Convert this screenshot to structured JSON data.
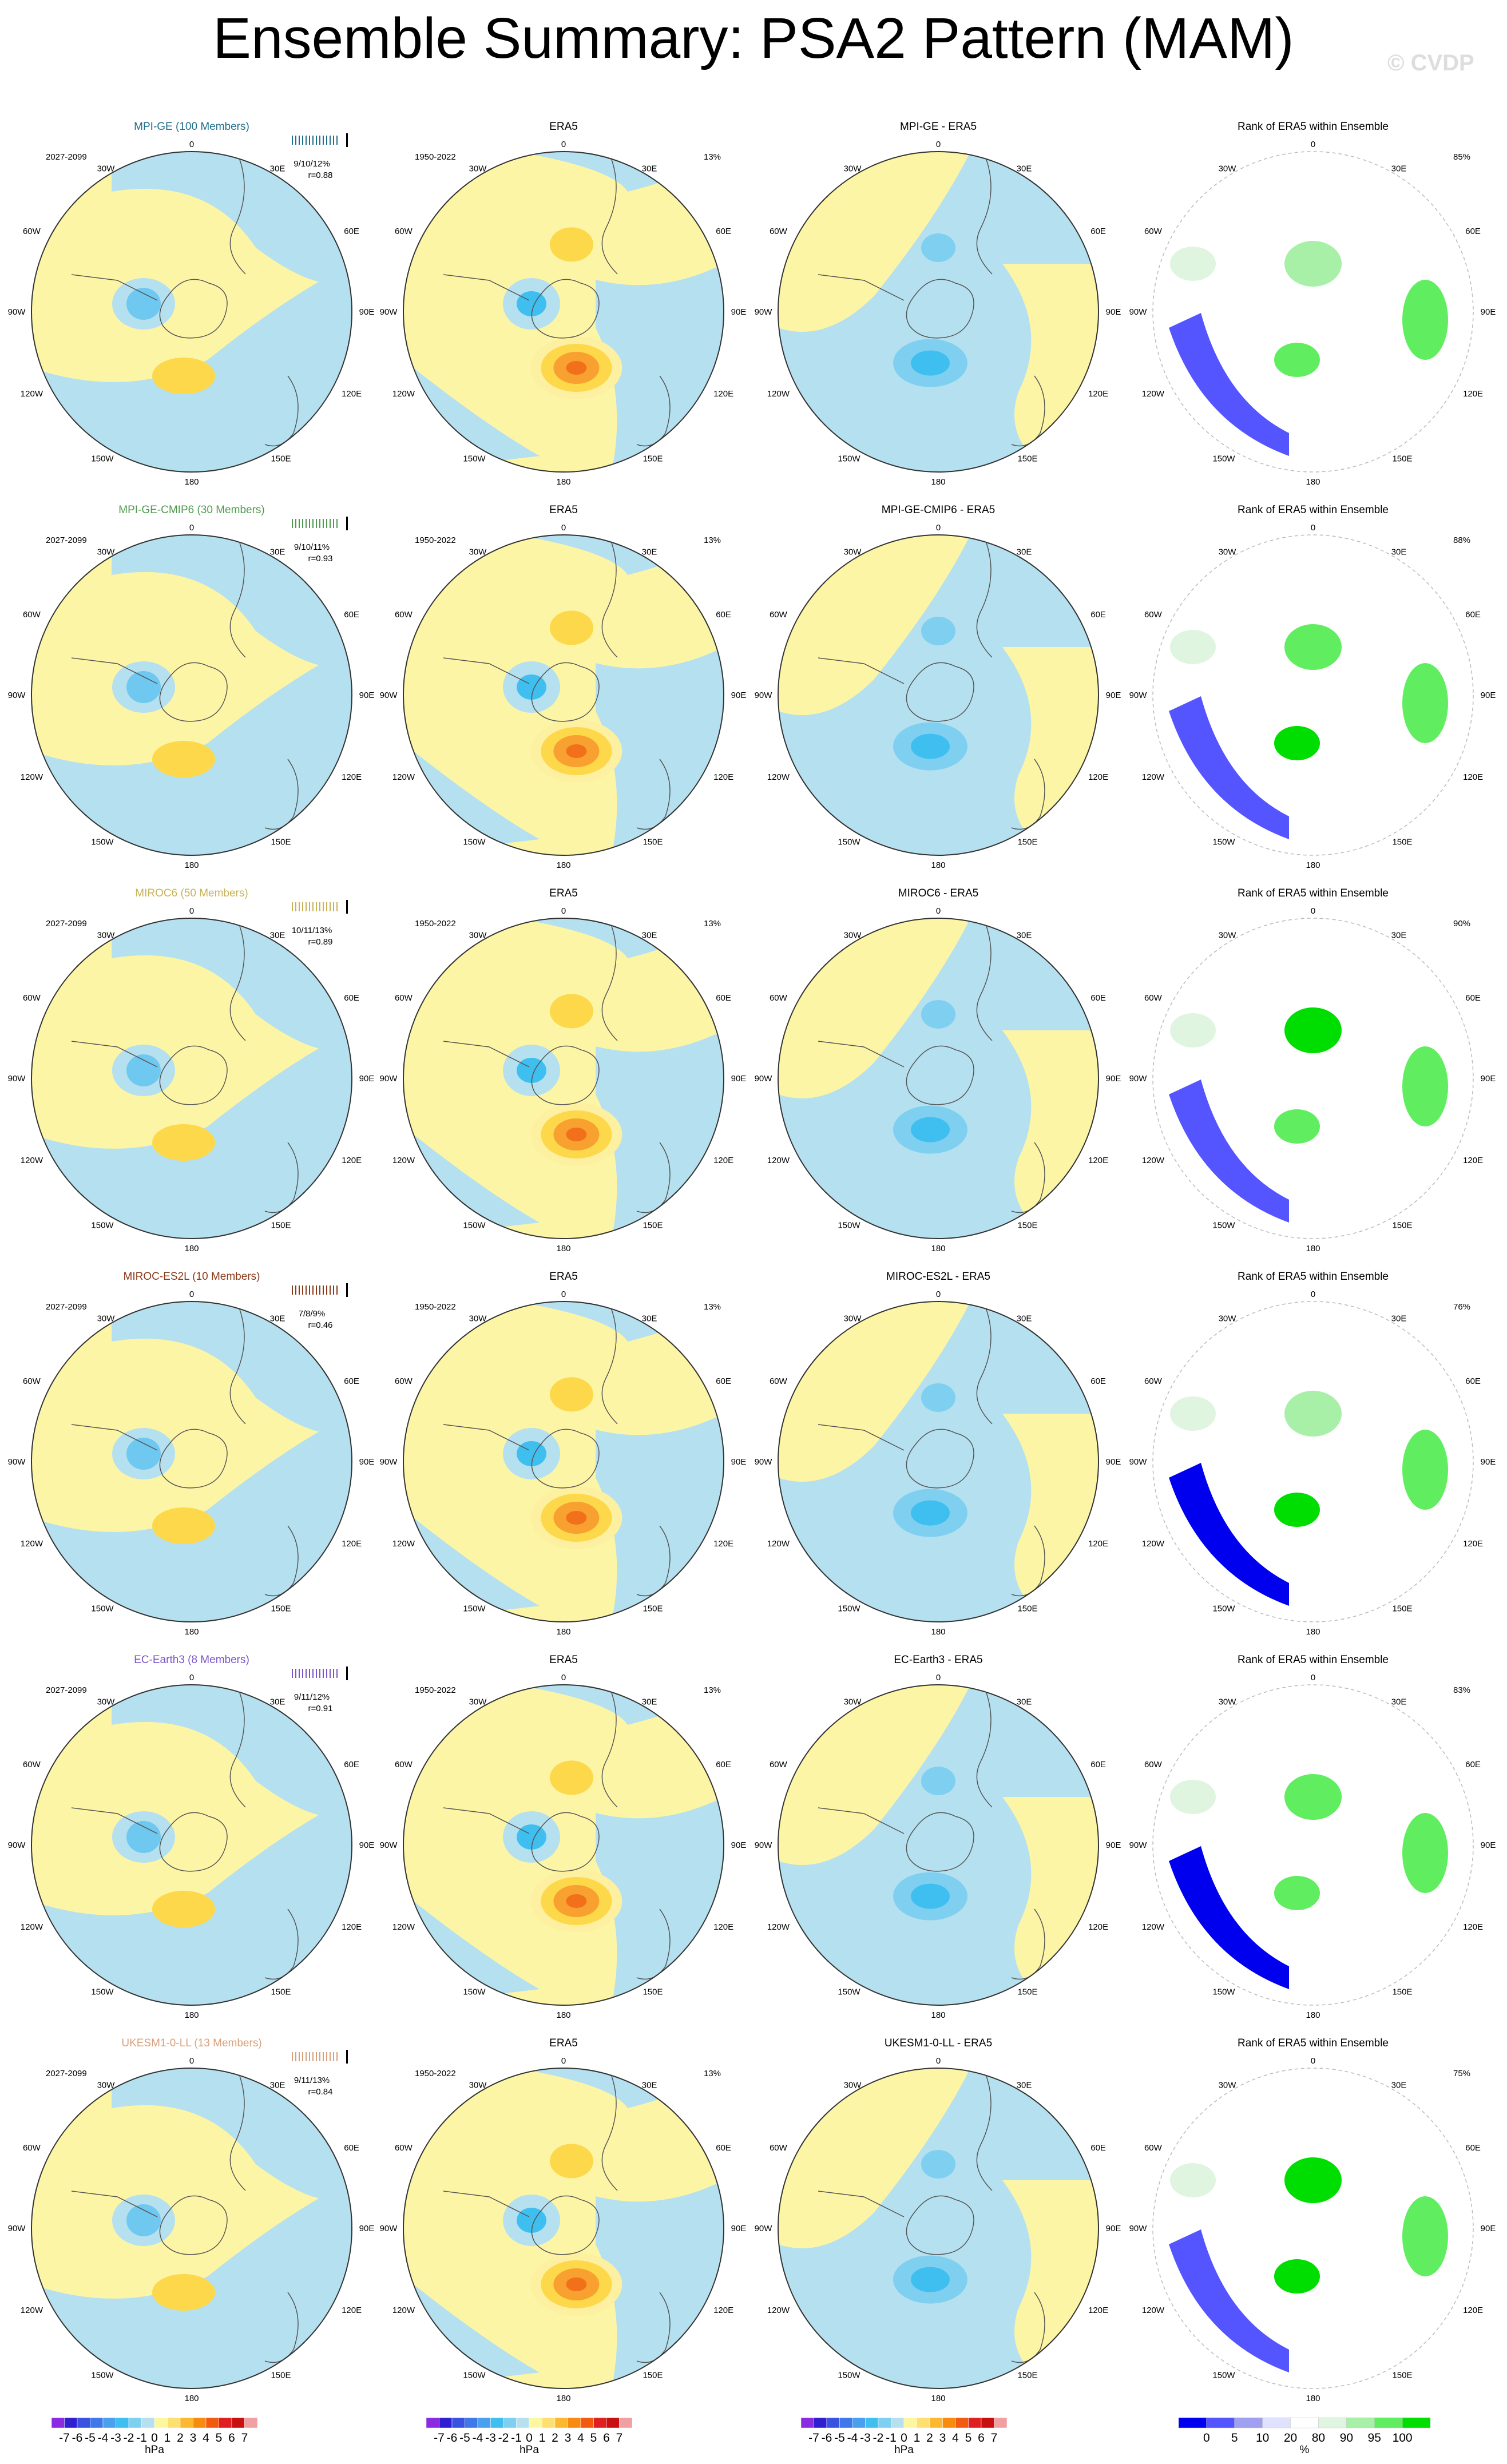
{
  "title": "Ensemble Summary: PSA2 Pattern (MAM)",
  "watermark": "© CVDP",
  "lon_labels": {
    "top": "0",
    "upper_left": "30W",
    "upper_right": "30E",
    "mid_upper_left": "60W",
    "mid_upper_right": "60E",
    "left": "90W",
    "right": "90E",
    "mid_lower_left": "120W",
    "mid_lower_right": "120E",
    "lower_left": "150W",
    "lower_right": "150E",
    "bottom": "180"
  },
  "column_titles": {
    "obs": "ERA5",
    "rank": "Rank of ERA5 within Ensemble"
  },
  "obs_period": "1950-2022",
  "obs_pct": "13%",
  "rows": [
    {
      "model": "MPI-GE (100 Members)",
      "color": "#1f6f8b",
      "period": "2027-2099",
      "pct_stats": "9/10/12%",
      "corr": "r=0.88",
      "diff_title": "MPI-GE - ERA5",
      "rank_pct": "85%"
    },
    {
      "model": "MPI-GE-CMIP6 (30 Members)",
      "color": "#4e9a4e",
      "period": "2027-2099",
      "pct_stats": "9/10/11%",
      "corr": "r=0.93",
      "diff_title": "MPI-GE-CMIP6 - ERA5",
      "rank_pct": "88%"
    },
    {
      "model": "MIROC6 (50 Members)",
      "color": "#c8b25a",
      "period": "2027-2099",
      "pct_stats": "10/11/13%",
      "corr": "r=0.89",
      "diff_title": "MIROC6 - ERA5",
      "rank_pct": "90%"
    },
    {
      "model": "MIROC-ES2L (10 Members)",
      "color": "#8b3a1a",
      "period": "2027-2099",
      "pct_stats": "7/8/9%",
      "corr": "r=0.46",
      "diff_title": "MIROC-ES2L - ERA5",
      "rank_pct": "76%"
    },
    {
      "model": "EC-Earth3 (8 Members)",
      "color": "#7a55c8",
      "period": "2027-2099",
      "pct_stats": "9/11/12%",
      "corr": "r=0.91",
      "diff_title": "EC-Earth3 - ERA5",
      "rank_pct": "83%"
    },
    {
      "model": "UKESM1-0-LL (13 Members)",
      "color": "#d8a07a",
      "period": "2027-2099",
      "pct_stats": "9/11/13%",
      "corr": "r=0.84",
      "diff_title": "UKESM1-0-LL - ERA5",
      "rank_pct": "75%"
    }
  ],
  "colorbar_hpa": {
    "labels": [
      "-7",
      "-6",
      "-5",
      "-4",
      "-3",
      "-2",
      "-1",
      "0",
      "1",
      "2",
      "3",
      "4",
      "5",
      "6",
      "7"
    ],
    "colors": [
      "#8a2be2",
      "#2f1fd0",
      "#3a52e0",
      "#3f78e8",
      "#4aa0ef",
      "#3fbff0",
      "#7fd0f0",
      "#b5e0f0",
      "#fdf7a0",
      "#fde070",
      "#fbb830",
      "#f88a10",
      "#f25a10",
      "#e02020",
      "#c81010",
      "#f0a0a0"
    ],
    "units": "hPa"
  },
  "colorbar_rank": {
    "labels": [
      "0",
      "5",
      "10",
      "20",
      "80",
      "90",
      "95",
      "100"
    ],
    "colors": [
      "#0000ee",
      "#5555ff",
      "#a0a0f0",
      "#e0e0ff",
      "#ffffff",
      "#dff5df",
      "#a8f0a8",
      "#60ee60",
      "#00dd00"
    ],
    "units": "%"
  }
}
